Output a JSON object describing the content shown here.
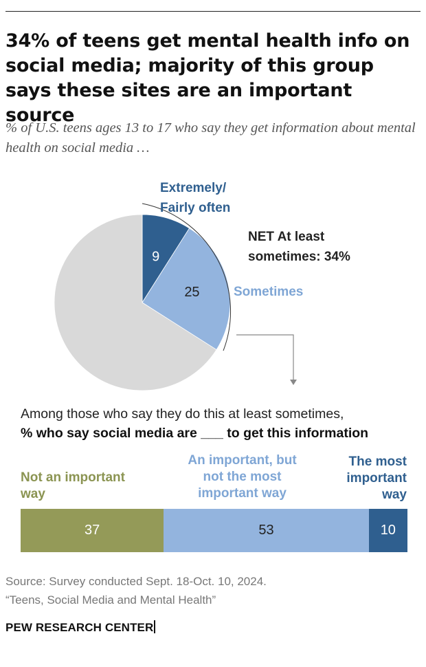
{
  "header": {
    "title": "34% of teens get mental health info on social media; majority of this group says these sites are an important source",
    "subtitle": "% of U.S. teens ages 13 to 17 who say they get information about mental health on social media …"
  },
  "pie_labels": {
    "extremely": [
      "Extremely/",
      "Fairly often"
    ],
    "sometimes": "Sometimes",
    "net": [
      "NET At least",
      "sometimes: 34%"
    ]
  },
  "bar_intro": {
    "line1": "Among those who say they do this at least sometimes,",
    "line2": "% who say social media are ___ to get this information"
  },
  "bar_labels": {
    "not_important": [
      "Not an important",
      "way"
    ],
    "important": [
      "An important, but",
      "not the most",
      "important way"
    ],
    "most_important": [
      "The most",
      "important",
      "way"
    ]
  },
  "footer": {
    "source": "Source: Survey conducted Sept. 18-Oct. 10, 2024.",
    "report": "“Teens, Social Media and Mental Health”",
    "brand": "PEW RESEARCH CENTER"
  },
  "colors": {
    "dark_blue": "#2f5f8f",
    "light_blue": "#93b4de",
    "gray": "#d9d9d9",
    "olive": "#949a58"
  },
  "chart_data": [
    {
      "type": "pie",
      "title": "% of U.S. teens ages 13 to 17 who say they get information about mental health on social media …",
      "slices": [
        {
          "label": "Extremely/ Fairly often",
          "value": 9,
          "color": "#2f5f8f",
          "show_value": true
        },
        {
          "label": "Sometimes",
          "value": 25,
          "color": "#93b4de",
          "show_value": true
        },
        {
          "label": "",
          "value": 66,
          "color": "#d9d9d9",
          "show_value": false
        }
      ],
      "annotation": "NET At least sometimes: 34%"
    },
    {
      "type": "bar",
      "orientation": "horizontal-stacked",
      "title": "% who say social media are ___ to get this information",
      "categories": [
        "Not an important way",
        "An important, but not the most important way",
        "The most important way"
      ],
      "values": [
        37,
        53,
        10
      ],
      "colors": [
        "#949a58",
        "#93b4de",
        "#2f5f8f"
      ]
    }
  ]
}
